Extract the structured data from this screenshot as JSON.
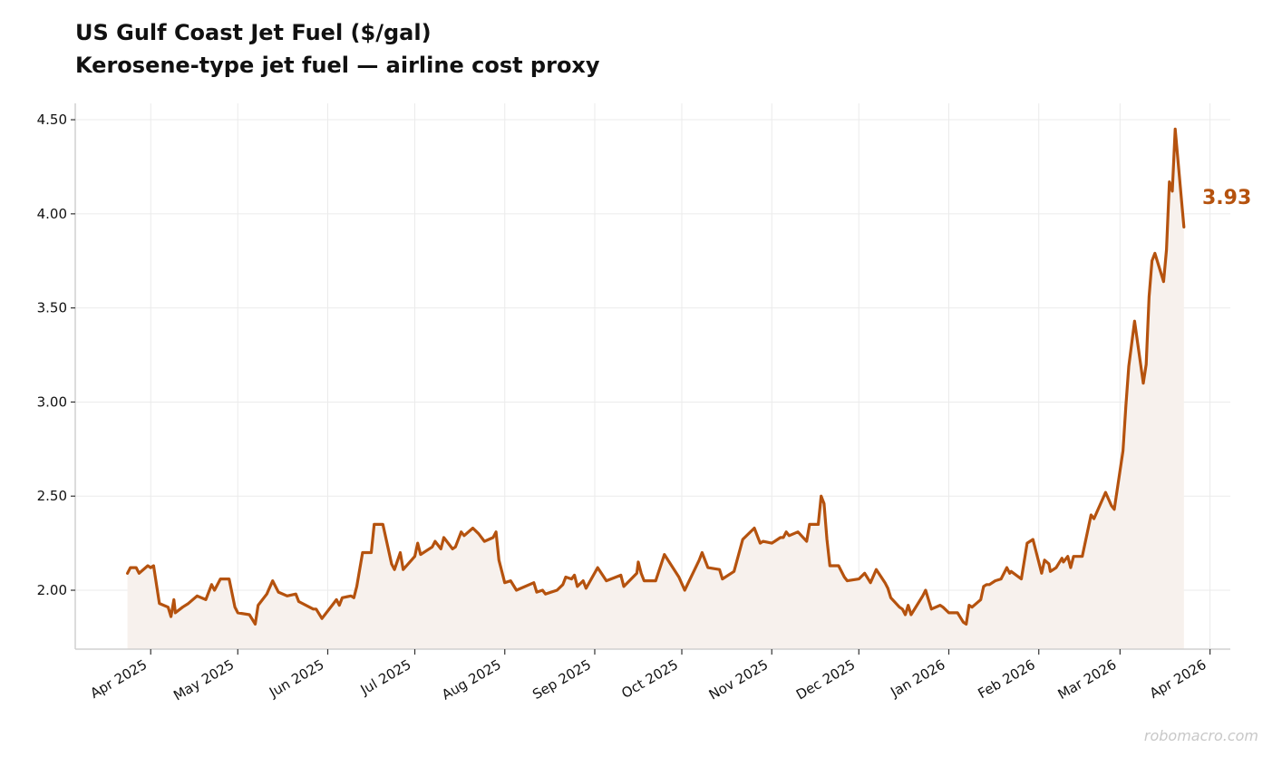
{
  "chart_data": {
    "type": "line",
    "title": "US Gulf Coast Jet Fuel ($/gal)",
    "subtitle": "Kerosene-type jet fuel — airline cost proxy",
    "xlabel": "",
    "ylabel": "",
    "x_unit": "days since 2025-04-01",
    "ylim": [
      1.687,
      4.587
    ],
    "xlim": [
      -26,
      372
    ],
    "grid": true,
    "series_color": "#b5520e",
    "fill_color": "#f7f1ed",
    "last_value_label": "3.93",
    "yticks": [
      {
        "value": 2.0,
        "label": "2.00"
      },
      {
        "value": 2.5,
        "label": "2.50"
      },
      {
        "value": 3.0,
        "label": "3.00"
      },
      {
        "value": 3.5,
        "label": "3.50"
      },
      {
        "value": 4.0,
        "label": "4.00"
      },
      {
        "value": 4.5,
        "label": "4.50"
      }
    ],
    "xticks": [
      {
        "value": 0,
        "label": "Apr 2025"
      },
      {
        "value": 30,
        "label": "May 2025"
      },
      {
        "value": 61,
        "label": "Jun 2025"
      },
      {
        "value": 91,
        "label": "Jul 2025"
      },
      {
        "value": 122,
        "label": "Aug 2025"
      },
      {
        "value": 153,
        "label": "Sep 2025"
      },
      {
        "value": 183,
        "label": "Oct 2025"
      },
      {
        "value": 214,
        "label": "Nov 2025"
      },
      {
        "value": 244,
        "label": "Dec 2025"
      },
      {
        "value": 275,
        "label": "Jan 2026"
      },
      {
        "value": 306,
        "label": "Feb 2026"
      },
      {
        "value": 334,
        "label": "Mar 2026"
      },
      {
        "value": 365,
        "label": "Apr 2026"
      }
    ],
    "series": [
      {
        "name": "US Gulf Coast Jet Fuel",
        "x": [
          -8,
          -7,
          -5,
          -4,
          -1,
          0,
          1,
          3,
          6,
          7,
          8,
          8.5,
          11,
          13,
          16,
          19,
          21,
          22,
          24,
          27,
          29,
          30,
          34,
          36,
          37,
          40,
          42,
          44,
          47,
          50,
          51,
          56,
          57,
          59,
          63,
          64,
          65,
          66,
          69,
          70,
          71,
          73,
          76,
          77,
          80,
          83,
          84,
          86,
          87,
          91,
          92,
          93,
          97,
          98,
          100,
          101,
          104,
          105,
          107,
          108,
          111,
          113,
          115,
          118,
          119,
          120,
          122,
          124,
          126,
          132,
          133,
          135,
          136,
          140,
          142,
          143,
          145,
          146,
          147,
          149,
          150,
          154,
          157,
          162,
          163,
          167.5,
          168,
          169,
          170,
          174,
          177,
          182,
          184,
          189,
          190,
          192,
          196,
          197,
          201,
          204,
          208,
          210,
          211,
          214,
          215,
          217,
          218,
          219,
          220,
          223,
          226,
          227,
          230,
          231,
          232,
          233,
          234,
          237,
          239,
          240,
          244,
          246,
          248,
          250,
          253,
          254,
          255,
          258,
          259,
          260,
          261,
          262,
          266,
          267,
          269,
          272,
          273,
          275,
          278,
          280,
          281,
          282,
          283,
          286,
          287,
          288,
          289,
          291,
          293,
          295,
          296,
          296.5,
          300,
          302,
          304,
          307,
          308,
          309.5,
          310,
          312,
          314,
          314.5,
          316,
          317,
          318,
          321,
          324,
          325,
          329,
          331,
          332,
          335,
          336,
          337,
          339,
          342,
          343,
          344,
          345,
          346,
          349,
          350,
          351,
          352,
          353,
          356
        ],
        "values": [
          2.09,
          2.12,
          2.12,
          2.09,
          2.13,
          2.12,
          2.13,
          1.93,
          1.91,
          1.86,
          1.95,
          1.88,
          1.91,
          1.93,
          1.97,
          1.95,
          2.03,
          2.0,
          2.06,
          2.06,
          1.91,
          1.88,
          1.87,
          1.82,
          1.92,
          1.98,
          2.05,
          1.99,
          1.97,
          1.98,
          1.94,
          1.9,
          1.9,
          1.85,
          1.93,
          1.95,
          1.92,
          1.96,
          1.97,
          1.96,
          2.02,
          2.2,
          2.2,
          2.35,
          2.35,
          2.14,
          2.11,
          2.2,
          2.11,
          2.18,
          2.25,
          2.19,
          2.23,
          2.26,
          2.22,
          2.28,
          2.22,
          2.23,
          2.31,
          2.29,
          2.33,
          2.3,
          2.26,
          2.28,
          2.31,
          2.16,
          2.04,
          2.05,
          2.0,
          2.04,
          1.99,
          2.0,
          1.98,
          2.0,
          2.03,
          2.07,
          2.06,
          2.08,
          2.02,
          2.05,
          2.01,
          2.12,
          2.05,
          2.08,
          2.02,
          2.09,
          2.15,
          2.09,
          2.05,
          2.05,
          2.19,
          2.07,
          2.0,
          2.16,
          2.2,
          2.12,
          2.11,
          2.06,
          2.1,
          2.27,
          2.33,
          2.25,
          2.26,
          2.25,
          2.26,
          2.28,
          2.28,
          2.31,
          2.29,
          2.31,
          2.26,
          2.35,
          2.35,
          2.5,
          2.46,
          2.27,
          2.13,
          2.13,
          2.07,
          2.05,
          2.06,
          2.09,
          2.04,
          2.11,
          2.04,
          2.01,
          1.96,
          1.91,
          1.9,
          1.87,
          1.92,
          1.87,
          1.97,
          2.0,
          1.9,
          1.92,
          1.91,
          1.88,
          1.88,
          1.83,
          1.82,
          1.92,
          1.91,
          1.95,
          2.02,
          2.03,
          2.03,
          2.05,
          2.06,
          2.12,
          2.09,
          2.1,
          2.06,
          2.25,
          2.27,
          2.09,
          2.16,
          2.14,
          2.1,
          2.12,
          2.17,
          2.15,
          2.18,
          2.12,
          2.18,
          2.18,
          2.4,
          2.38,
          2.52,
          2.45,
          2.43,
          2.74,
          2.98,
          3.19,
          3.43,
          3.1,
          3.2,
          3.56,
          3.75,
          3.79,
          3.64,
          3.81,
          4.17,
          4.12,
          4.45,
          3.93
        ]
      }
    ]
  },
  "watermark": "robomacro.com"
}
